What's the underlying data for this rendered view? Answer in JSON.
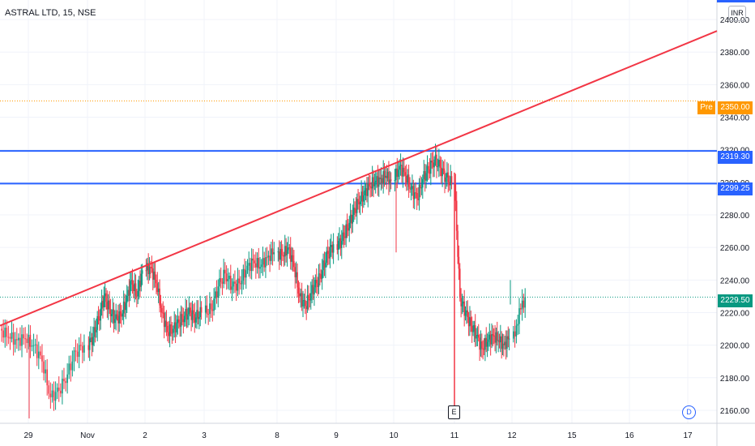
{
  "header": {
    "symbol": "ASTRAL LTD, 15, NSE",
    "currency": "INR"
  },
  "price_tags": {
    "pre_label": "Pre",
    "pre": "2350.00",
    "level_upper": "2319.30",
    "level_lower": "2299.25",
    "last": "2229.50"
  },
  "markers": {
    "earnings": "E",
    "dividend": "D"
  },
  "colors": {
    "up": "#089981",
    "down": "#f23645",
    "level": "#2962ff",
    "trend": "#f23645",
    "pre": "#ff9800",
    "grid": "#f0f3fa"
  },
  "chart_data": {
    "type": "candlestick",
    "interval": "15",
    "y_axis": {
      "range": [
        2152,
        2412
      ],
      "ticks": [
        2160,
        2180,
        2200,
        2220,
        2240,
        2260,
        2280,
        2300,
        2320,
        2340,
        2360,
        2380,
        2400
      ],
      "tick_labels": [
        "2160.00",
        "2180.00",
        "2200.00",
        "2220.00",
        "2240.00",
        "2260.00",
        "2280.00",
        "2300.00",
        "2320.00",
        "2340.00",
        "2360.00",
        "2380.00",
        "2400.00"
      ]
    },
    "x_axis": {
      "tick_labels": [
        "29",
        "Nov",
        "2",
        "3",
        "8",
        "9",
        "10",
        "11",
        "12",
        "15",
        "16",
        "17"
      ]
    },
    "grid": true,
    "horizontal_levels": [
      {
        "value": 2319.3,
        "style": "solid",
        "color": "#2962ff"
      },
      {
        "value": 2299.25,
        "style": "solid",
        "color": "#2962ff"
      },
      {
        "value": 2350.0,
        "style": "dotted",
        "color": "#ff9800"
      },
      {
        "value": 2229.5,
        "style": "dotted",
        "color": "#089981"
      }
    ],
    "trendline": {
      "from_price": 2212,
      "to_price": 2393
    },
    "sessions": [
      {
        "label": "29",
        "closes": [
          2205,
          2203,
          2204,
          2200,
          2190,
          2168,
          2172,
          2182,
          2196,
          2200
        ]
      },
      {
        "label": "Nov",
        "closes": [
          2205,
          2216,
          2230,
          2222,
          2216,
          2218,
          2226,
          2240,
          2230,
          2246
        ]
      },
      {
        "label": "2",
        "closes": [
          2248,
          2238,
          2220,
          2208,
          2210,
          2214,
          2218,
          2220,
          2217,
          2220
        ]
      },
      {
        "label": "3",
        "closes": [
          2222,
          2236,
          2244,
          2236,
          2238,
          2246,
          2252,
          2248,
          2254,
          2257
        ]
      },
      {
        "label": "8",
        "closes": [
          2255,
          2260,
          2248,
          2230,
          2224,
          2232,
          2238,
          2246,
          2256,
          2262
        ]
      },
      {
        "label": "9",
        "closes": [
          2264,
          2272,
          2280,
          2288,
          2292,
          2298,
          2300,
          2302,
          2304,
          2301
        ]
      },
      {
        "label": "10",
        "closes": [
          2310,
          2304,
          2296,
          2290,
          2302,
          2308,
          2314,
          2309,
          2303,
          2299
        ]
      },
      {
        "label": "11",
        "closes": [
          2229,
          2220,
          2212,
          2206,
          2198,
          2202,
          2206,
          2203,
          2200,
          2204
        ]
      },
      {
        "label": "12",
        "closes": [
          2212,
          2222,
          2229.5
        ]
      }
    ]
  }
}
